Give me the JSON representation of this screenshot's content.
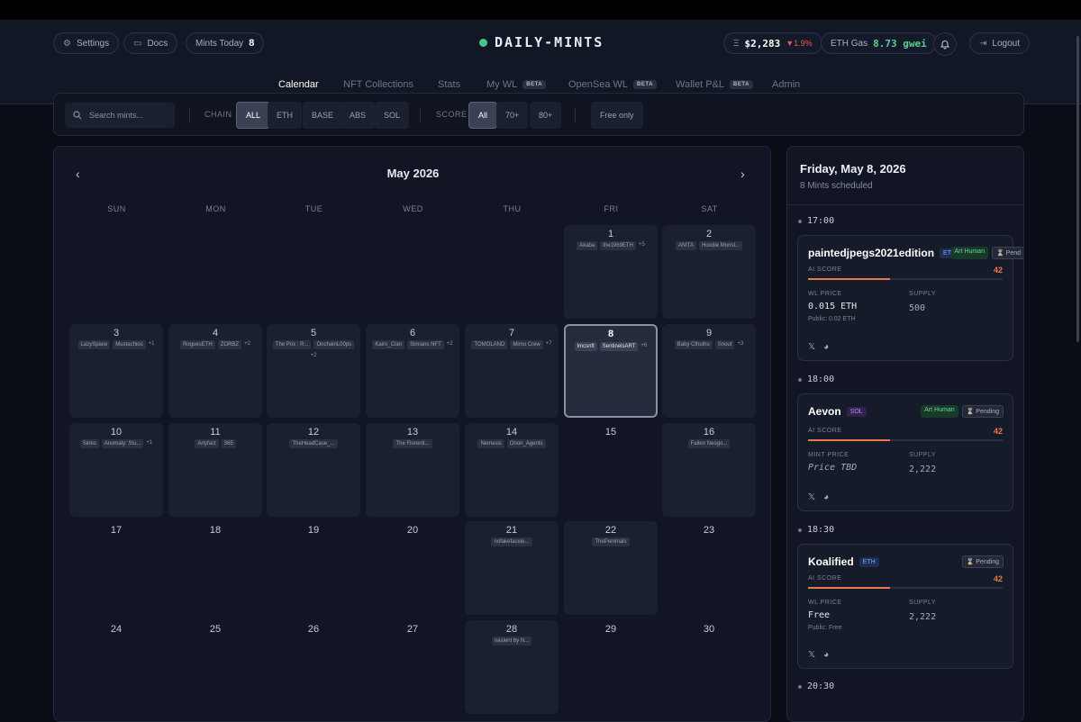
{
  "header": {
    "settings": "Settings",
    "docs": "Docs",
    "mints_today_label": "Mints Today",
    "mints_today_value": "8",
    "logo": "DAILY-MINTS",
    "eth_price": "$2,283",
    "eth_change": "▼1.9%",
    "gas_label": "ETH Gas",
    "gas_value": "8.73 gwei",
    "logout": "Logout"
  },
  "nav": {
    "tabs": [
      {
        "label": "Calendar",
        "active": true
      },
      {
        "label": "NFT Collections"
      },
      {
        "label": "Stats"
      },
      {
        "label": "My WL",
        "beta": "BETA"
      },
      {
        "label": "OpenSea WL",
        "beta": "BETA"
      },
      {
        "label": "Wallet P&L",
        "beta": "BETA"
      },
      {
        "label": "Admin"
      }
    ]
  },
  "filters": {
    "search_placeholder": "Search mints...",
    "chain_label": "CHAIN",
    "chains": [
      "ALL",
      "ETH",
      "BASE",
      "ABS",
      "SOL"
    ],
    "score_label": "SCORE",
    "scores": [
      "All",
      "70+",
      "80+"
    ],
    "free_only": "Free only"
  },
  "calendar": {
    "month": "May 2026",
    "dow": [
      "SUN",
      "MON",
      "TUE",
      "WED",
      "THU",
      "FRI",
      "SAT"
    ],
    "days": [
      {
        "n": "1",
        "chips": [
          "Akaba",
          "the1969ETH"
        ],
        "more": "+5"
      },
      {
        "n": "2",
        "chips": [
          "ANITA",
          "Hoodie Monst..."
        ],
        "more": ""
      },
      {
        "n": "3",
        "chips": [
          "LazySpace",
          "Mustachios"
        ],
        "more": "+1"
      },
      {
        "n": "4",
        "chips": [
          "RoguesETH",
          "ZORBZ"
        ],
        "more": "+2"
      },
      {
        "n": "5",
        "chips": [
          "The Prix : R...",
          "OnchainL00ps"
        ],
        "more": "+2"
      },
      {
        "n": "6",
        "chips": [
          "Kairo_Clan",
          "Simians NFT"
        ],
        "more": "+2"
      },
      {
        "n": "7",
        "chips": [
          "TOMOLAND",
          "Mimo Crew"
        ],
        "more": "+7"
      },
      {
        "n": "8",
        "chips": [
          "lmcsnft",
          "SentinelsART"
        ],
        "more": "+6"
      },
      {
        "n": "9",
        "chips": [
          "Baby Cthulhu",
          "Snout"
        ],
        "more": "+3"
      },
      {
        "n": "10",
        "chips": [
          "Sinko",
          "Anomaly: Stu..."
        ],
        "more": "+1"
      },
      {
        "n": "11",
        "chips": [
          "Artyfact",
          "365"
        ],
        "more": ""
      },
      {
        "n": "12",
        "chips": [
          "TheHeadCase_..."
        ],
        "more": ""
      },
      {
        "n": "13",
        "chips": [
          "The Florenti..."
        ],
        "more": ""
      },
      {
        "n": "14",
        "chips": [
          "Nemesis",
          "Orion_Agents"
        ],
        "more": ""
      },
      {
        "n": "15",
        "chips": [],
        "more": ""
      },
      {
        "n": "16",
        "chips": [
          "Fallen Neogo..."
        ],
        "more": ""
      },
      {
        "n": "17",
        "chips": [],
        "more": ""
      },
      {
        "n": "18",
        "chips": [],
        "more": ""
      },
      {
        "n": "19",
        "chips": [],
        "more": ""
      },
      {
        "n": "20",
        "chips": [],
        "more": ""
      },
      {
        "n": "21",
        "chips": [
          "nofakefacele..."
        ],
        "more": ""
      },
      {
        "n": "22",
        "chips": [
          "ThePenimals"
        ],
        "more": ""
      },
      {
        "n": "23",
        "chips": [],
        "more": ""
      },
      {
        "n": "24",
        "chips": [],
        "more": ""
      },
      {
        "n": "25",
        "chips": [],
        "more": ""
      },
      {
        "n": "26",
        "chips": [],
        "more": ""
      },
      {
        "n": "27",
        "chips": [],
        "more": ""
      },
      {
        "n": "28",
        "chips": [
          "nasient by N..."
        ],
        "more": ""
      },
      {
        "n": "29",
        "chips": [],
        "more": ""
      },
      {
        "n": "30",
        "chips": [],
        "more": ""
      }
    ]
  },
  "side": {
    "date": "Friday, May 8, 2026",
    "sub": "8 Mints scheduled",
    "score_label": "AI SCORE",
    "supply_label": "SUPPLY",
    "slots": [
      {
        "time": "17:00",
        "name": "paintedjpegs2021edition",
        "chain": "ETH",
        "art": "Art Human",
        "pending": "⌛ Pend",
        "score": "42",
        "score_frac": 0.42,
        "price_label": "WL PRICE",
        "price": "0.015 ETH",
        "public": "Public: 0.02 ETH",
        "supply": "500"
      },
      {
        "time": "18:00",
        "name": "Aevon",
        "chain": "SOL",
        "art": "Art Human",
        "pending": "⌛ Pending",
        "score": "42",
        "score_frac": 0.42,
        "price_label": "MINT PRICE",
        "price": "Price TBD",
        "public": "",
        "supply": "2,222"
      },
      {
        "time": "18:30",
        "name": "Koalified",
        "chain": "ETH",
        "art": "",
        "pending": "⌛ Pending",
        "score": "42",
        "score_frac": 0.42,
        "price_label": "WL PRICE",
        "price": "Free",
        "public": "Public: Free",
        "supply": "2,222"
      }
    ],
    "next_time": "20:30"
  }
}
